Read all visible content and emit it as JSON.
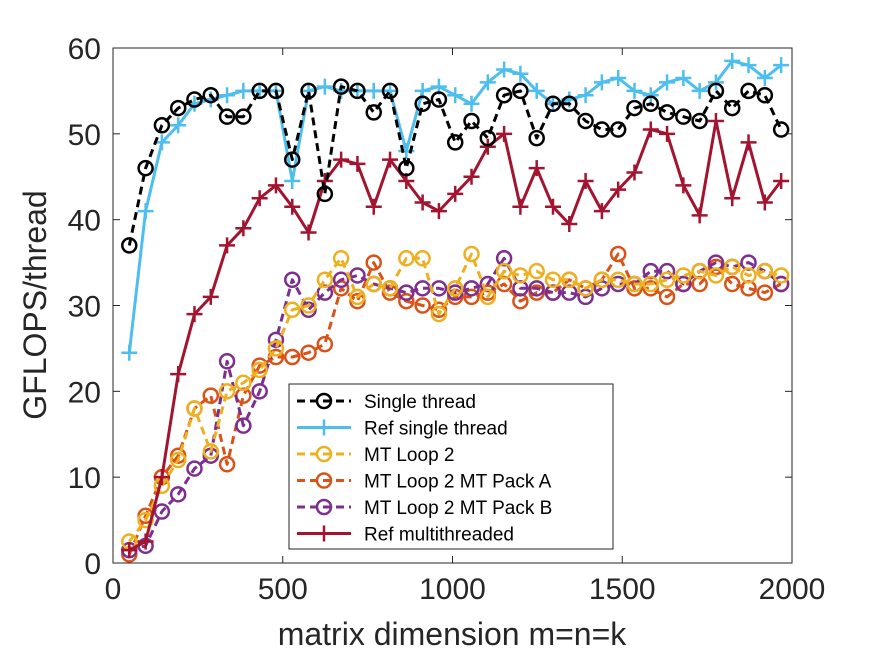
{
  "chart_data": {
    "type": "line",
    "xlabel": "matrix dimension m=n=k",
    "ylabel": "GFLOPS/thread",
    "xlim": [
      0,
      2000
    ],
    "ylim": [
      0,
      60
    ],
    "xticks": [
      "0",
      "500",
      "1000",
      "1500",
      "2000"
    ],
    "yticks": [
      "0",
      "10",
      "20",
      "30",
      "40",
      "50",
      "60"
    ],
    "grid": false,
    "legend_position": "bottom-center",
    "x": [
      48,
      96,
      144,
      192,
      240,
      288,
      336,
      384,
      432,
      480,
      528,
      576,
      624,
      672,
      720,
      768,
      816,
      864,
      912,
      960,
      1008,
      1056,
      1104,
      1152,
      1200,
      1248,
      1296,
      1344,
      1392,
      1440,
      1488,
      1536,
      1584,
      1632,
      1680,
      1728,
      1776,
      1824,
      1872,
      1920,
      1968
    ],
    "series": [
      {
        "name": "Single thread",
        "color": "#000000",
        "dash": "8,5",
        "marker": "circle",
        "values": [
          37,
          46,
          51,
          53,
          54,
          54.5,
          52,
          52,
          55,
          55,
          47,
          55,
          43,
          55.5,
          55,
          52.5,
          55,
          46,
          53.5,
          54,
          49,
          51.5,
          49.5,
          54.5,
          55,
          49.5,
          53.5,
          53.5,
          51.5,
          50.5,
          50.5,
          53,
          53.5,
          52.5,
          52,
          51.5,
          55,
          53,
          55,
          54.5,
          50.5
        ]
      },
      {
        "name": "Ref single thread",
        "color": "#4DBEEE",
        "dash": "",
        "marker": "plus",
        "values": [
          24.5,
          41,
          49,
          51,
          53.5,
          54,
          54.5,
          55,
          55,
          55,
          44.5,
          55,
          55.5,
          55,
          55,
          55,
          55,
          48,
          55,
          55.5,
          54.5,
          53.5,
          56,
          57.5,
          57,
          55,
          53.5,
          54,
          54.5,
          56,
          56.5,
          55,
          54.5,
          56,
          56.5,
          55,
          56,
          58.5,
          58,
          56.5,
          58
        ]
      },
      {
        "name": "MT Loop 2",
        "color": "#EDB120",
        "dash": "8,5",
        "marker": "circle",
        "values": [
          2.5,
          5,
          9,
          12,
          18,
          13,
          20,
          21,
          22.5,
          25,
          29.5,
          30,
          33,
          35.5,
          31,
          32.5,
          32,
          35.5,
          35.5,
          29,
          32,
          36,
          31,
          34,
          33.5,
          34,
          33,
          33,
          32,
          33,
          33,
          32.5,
          32.5,
          33,
          33.5,
          34,
          33.5,
          34.5,
          33.5,
          34,
          33.5
        ]
      },
      {
        "name": "MT Loop 2 MT Pack A",
        "color": "#D95319",
        "dash": "8,5",
        "marker": "circle",
        "values": [
          1,
          5.5,
          10,
          12.5,
          18,
          19.5,
          11.5,
          19.5,
          23,
          24,
          24,
          24.5,
          25.5,
          32,
          30.5,
          35,
          31.5,
          30.5,
          30,
          29.5,
          31,
          31,
          31.5,
          32.5,
          30.5,
          31.5,
          31.5,
          33,
          32,
          33,
          36,
          32,
          32,
          31,
          32.5,
          32.5,
          34.5,
          32.5,
          32,
          31.5,
          32.5
        ]
      },
      {
        "name": "MT Loop 2 MT Pack B",
        "color": "#7E2F8E",
        "dash": "8,5",
        "marker": "circle",
        "values": [
          1.5,
          2,
          6,
          8,
          11,
          12.5,
          23.5,
          16,
          20,
          26,
          33,
          29.5,
          31.5,
          33,
          33.5,
          32.5,
          32,
          31.5,
          32,
          32,
          31.5,
          32,
          32.5,
          35.5,
          32,
          32,
          31.5,
          31.5,
          31,
          32,
          32.5,
          32.5,
          34,
          34,
          32.5,
          34,
          35,
          34.5,
          35,
          34,
          32.5
        ]
      },
      {
        "name": "Ref multithreaded",
        "color": "#A2142F",
        "dash": "",
        "marker": "plus",
        "values": [
          1.5,
          2.5,
          10,
          22,
          29,
          31,
          37,
          39,
          42.5,
          44,
          41.5,
          38.5,
          44.5,
          47,
          46.5,
          41.5,
          47,
          44.5,
          42,
          41,
          43,
          45,
          48.5,
          50,
          41.5,
          46,
          41.5,
          39.5,
          44.5,
          41,
          43.5,
          45.5,
          50.5,
          50,
          44,
          40.5,
          51.5,
          42.5,
          49,
          42,
          44.5
        ]
      }
    ]
  }
}
